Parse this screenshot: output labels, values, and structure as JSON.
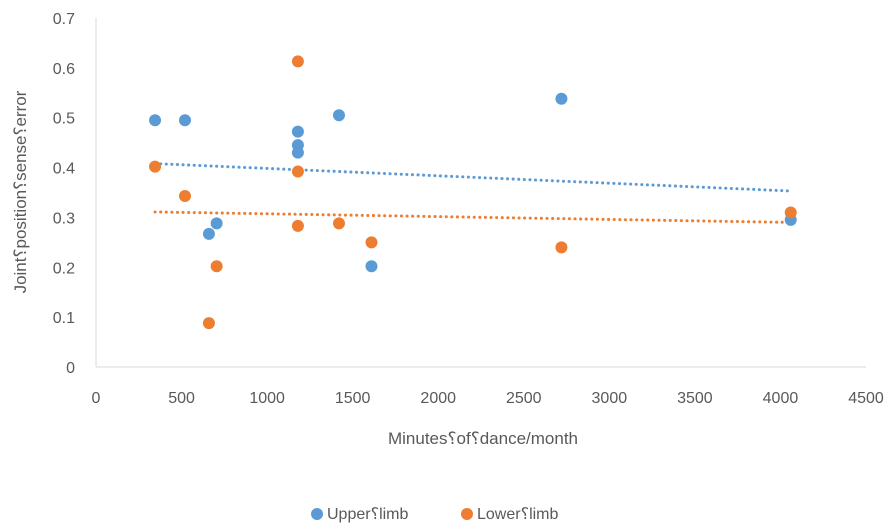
{
  "chart_data": {
    "type": "scatter",
    "title": "",
    "xlabel": "Minutes⸮of⸮dance/month",
    "ylabel": "Joint⸮position⸮sense⸮error",
    "xlim": [
      0,
      4500
    ],
    "ylim": [
      0,
      0.7
    ],
    "x_ticks": [
      0,
      500,
      1000,
      1500,
      2000,
      2500,
      3000,
      3500,
      4000,
      4500
    ],
    "y_ticks": [
      0,
      0.1,
      0.2,
      0.3,
      0.4,
      0.5,
      0.6,
      0.7
    ],
    "x_tick_labels": [
      "0",
      "500",
      "1000",
      "1500",
      "2000",
      "2500",
      "3000",
      "3500",
      "4000",
      "4500"
    ],
    "y_tick_labels": [
      "0",
      "0.1",
      "0.2",
      "0.3",
      "0.4",
      "0.5",
      "0.6",
      "0.7"
    ],
    "grid": false,
    "legend_position": "bottom",
    "series": [
      {
        "name": "Upper⸮limb",
        "color": "#5B9BD5",
        "points": [
          {
            "x": 345,
            "y": 0.495
          },
          {
            "x": 520,
            "y": 0.495
          },
          {
            "x": 660,
            "y": 0.267
          },
          {
            "x": 705,
            "y": 0.288
          },
          {
            "x": 1180,
            "y": 0.472
          },
          {
            "x": 1180,
            "y": 0.445
          },
          {
            "x": 1180,
            "y": 0.43
          },
          {
            "x": 1420,
            "y": 0.505
          },
          {
            "x": 1610,
            "y": 0.202
          },
          {
            "x": 2720,
            "y": 0.538
          },
          {
            "x": 4060,
            "y": 0.295
          }
        ],
        "trendline": {
          "x": [
            345,
            4060
          ],
          "y": [
            0.408,
            0.353
          ]
        }
      },
      {
        "name": "Lower⸮limb",
        "color": "#ED7D31",
        "points": [
          {
            "x": 345,
            "y": 0.402
          },
          {
            "x": 520,
            "y": 0.343
          },
          {
            "x": 660,
            "y": 0.088
          },
          {
            "x": 705,
            "y": 0.202
          },
          {
            "x": 1180,
            "y": 0.613
          },
          {
            "x": 1180,
            "y": 0.392
          },
          {
            "x": 1180,
            "y": 0.283
          },
          {
            "x": 1420,
            "y": 0.288
          },
          {
            "x": 1610,
            "y": 0.25
          },
          {
            "x": 2720,
            "y": 0.24
          },
          {
            "x": 4060,
            "y": 0.31
          }
        ],
        "trendline": {
          "x": [
            345,
            4060
          ],
          "y": [
            0.311,
            0.29
          ]
        }
      }
    ]
  }
}
